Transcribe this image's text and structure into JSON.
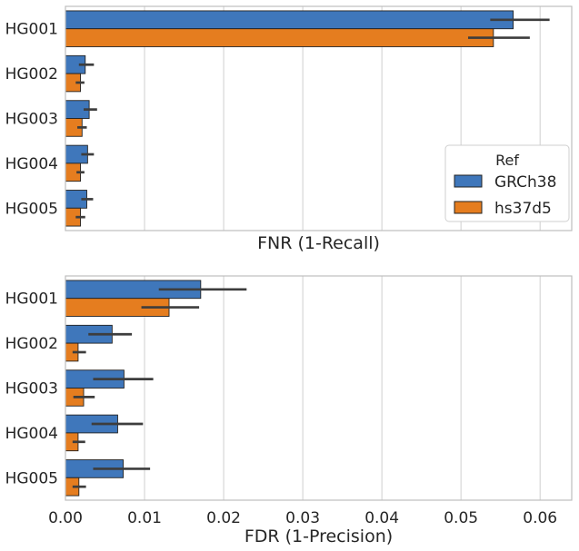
{
  "colors": {
    "GRCh38": "#3f77bb",
    "hs37d5": "#e57d1f",
    "errorbar": "#3d3d3d",
    "grid": "#cfcfcf",
    "frame": "#bdbdbd"
  },
  "legend": {
    "title": "Ref",
    "entries": [
      "GRCh38",
      "hs37d5"
    ],
    "placement": "lower-right of top panel"
  },
  "chart_data": [
    {
      "type": "bar",
      "orientation": "horizontal",
      "categories": [
        "HG001",
        "HG002",
        "HG003",
        "HG004",
        "HG005"
      ],
      "xlabel": "FNR (1-Recall)",
      "xlim": [
        0,
        0.064
      ],
      "xticks": [
        0.0,
        0.01,
        0.02,
        0.03,
        0.04,
        0.05,
        0.06
      ],
      "xtick_labels_shown": false,
      "grid": true,
      "series": [
        {
          "name": "GRCh38",
          "values": [
            0.0566,
            0.0025,
            0.003,
            0.0028,
            0.0027
          ],
          "ci": [
            [
              0.0537,
              0.0612
            ],
            [
              0.0017,
              0.0036
            ],
            [
              0.0023,
              0.004
            ],
            [
              0.002,
              0.0036
            ],
            [
              0.002,
              0.0035
            ]
          ]
        },
        {
          "name": "hs37d5",
          "values": [
            0.0541,
            0.0019,
            0.0021,
            0.0019,
            0.0019
          ],
          "ci": [
            [
              0.0509,
              0.0587
            ],
            [
              0.0013,
              0.0024
            ],
            [
              0.0015,
              0.0027
            ],
            [
              0.0014,
              0.0024
            ],
            [
              0.0013,
              0.0025
            ]
          ]
        }
      ]
    },
    {
      "type": "bar",
      "orientation": "horizontal",
      "categories": [
        "HG001",
        "HG002",
        "HG003",
        "HG004",
        "HG005"
      ],
      "xlabel": "FDR (1-Precision)",
      "xlim": [
        0,
        0.064
      ],
      "xticks": [
        0.0,
        0.01,
        0.02,
        0.03,
        0.04,
        0.05,
        0.06
      ],
      "xtick_labels": [
        "0.00",
        "0.01",
        "0.02",
        "0.03",
        "0.04",
        "0.05",
        "0.06"
      ],
      "grid": true,
      "series": [
        {
          "name": "GRCh38",
          "values": [
            0.0171,
            0.0059,
            0.0074,
            0.0066,
            0.0073
          ],
          "ci": [
            [
              0.0118,
              0.0229
            ],
            [
              0.0029,
              0.0084
            ],
            [
              0.0035,
              0.0111
            ],
            [
              0.0033,
              0.0098
            ],
            [
              0.0035,
              0.0107
            ]
          ]
        },
        {
          "name": "hs37d5",
          "values": [
            0.0131,
            0.0016,
            0.0023,
            0.0016,
            0.0017
          ],
          "ci": [
            [
              0.0096,
              0.0169
            ],
            [
              0.0009,
              0.0026
            ],
            [
              0.001,
              0.0037
            ],
            [
              0.0009,
              0.0025
            ],
            [
              0.0009,
              0.0026
            ]
          ]
        }
      ]
    }
  ]
}
